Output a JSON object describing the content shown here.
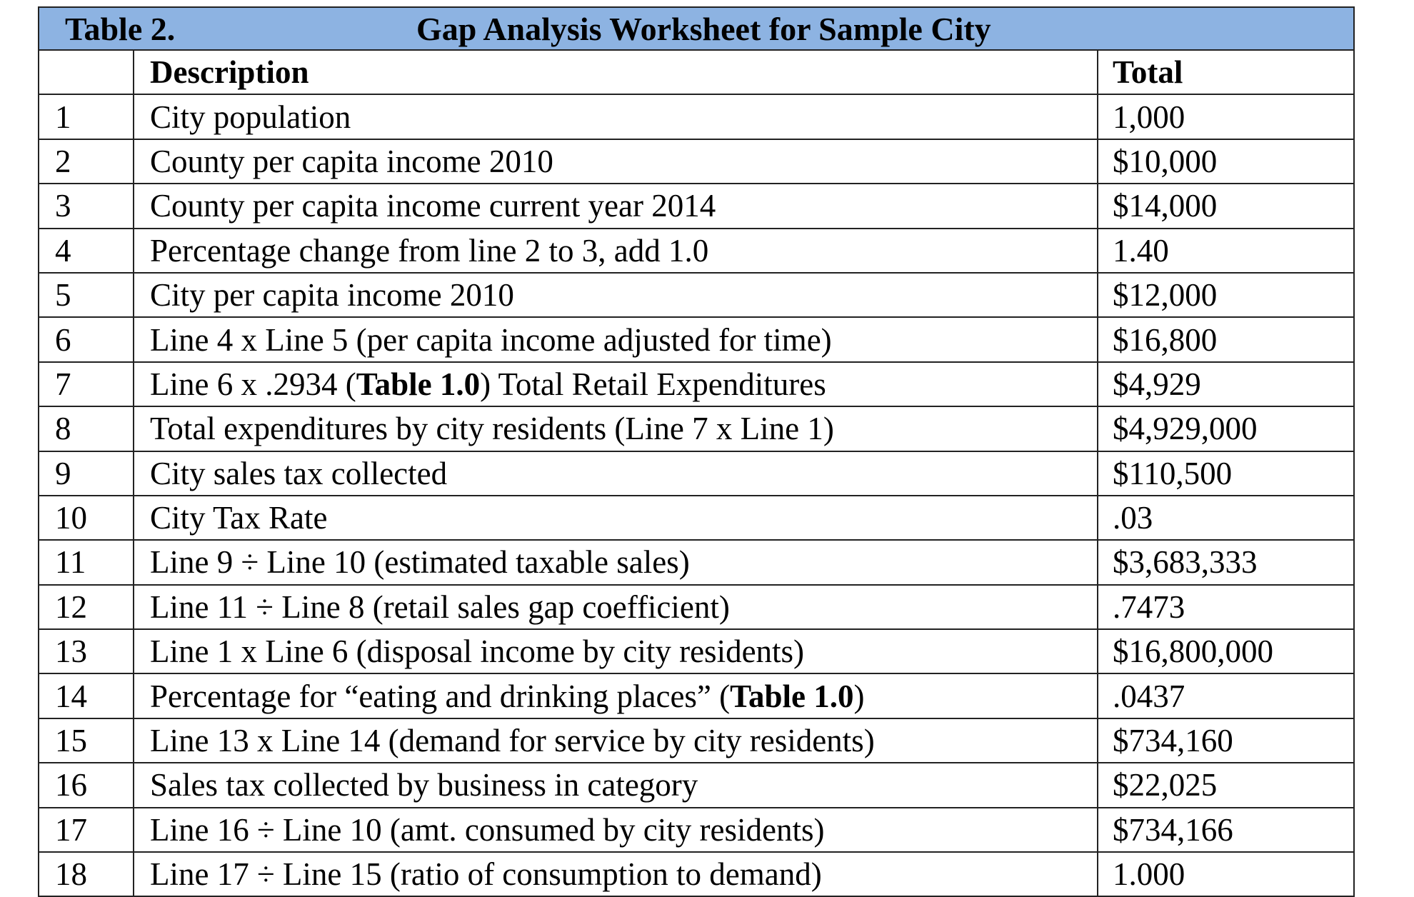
{
  "caption": {
    "label": "Table 2.",
    "title": "Gap Analysis Worksheet for Sample City"
  },
  "header": {
    "number": "",
    "description": "Description",
    "total": "Total"
  },
  "rows": [
    {
      "num": "1",
      "desc": "City population",
      "total": "1,000"
    },
    {
      "num": "2",
      "desc": "County per capita income 2010",
      "total": "$10,000"
    },
    {
      "num": "3",
      "desc": "County per capita income current year 2014",
      "total": "$14,000"
    },
    {
      "num": "4",
      "desc": "Percentage change from line 2 to 3, add 1.0",
      "total": "1.40"
    },
    {
      "num": "5",
      "desc": "City per capita income 2010",
      "total": "$12,000"
    },
    {
      "num": "6",
      "desc": "Line 4 x Line 5 (per capita income adjusted for time)",
      "total": "$16,800"
    },
    {
      "num": "7",
      "desc_pre": "Line 6 x .2934 (",
      "desc_bold": "Table 1.0",
      "desc_post": ") Total Retail Expenditures",
      "total": "$4,929"
    },
    {
      "num": "8",
      "desc": "Total expenditures by city residents (Line 7 x Line 1)",
      "total": "$4,929,000"
    },
    {
      "num": "9",
      "desc": "City sales tax collected",
      "total": "$110,500"
    },
    {
      "num": "10",
      "desc": "City Tax Rate",
      "total": ".03"
    },
    {
      "num": "11",
      "desc": "Line 9 ÷ Line 10 (estimated taxable sales)",
      "total": "$3,683,333"
    },
    {
      "num": "12",
      "desc": "Line 11 ÷ Line 8 (retail sales gap coefficient)",
      "total": ".7473"
    },
    {
      "num": "13",
      "desc": "Line 1 x Line 6 (disposal income by city residents)",
      "total": "$16,800,000"
    },
    {
      "num": "14",
      "desc_pre": "Percentage for “eating and drinking places” (",
      "desc_bold": "Table 1.0",
      "desc_post": ")",
      "total": ".0437"
    },
    {
      "num": "15",
      "desc": "Line 13 x Line 14 (demand for service by city residents)",
      "total": "$734,160"
    },
    {
      "num": "16",
      "desc": "Sales tax collected by business in category",
      "total": "$22,025"
    },
    {
      "num": "17",
      "desc": "Line 16 ÷ Line 10 (amt. consumed by city residents)",
      "total": "$734,166"
    },
    {
      "num": "18",
      "desc": "Line 17 ÷ Line 15 (ratio of consumption to demand)",
      "total": "1.000"
    }
  ]
}
